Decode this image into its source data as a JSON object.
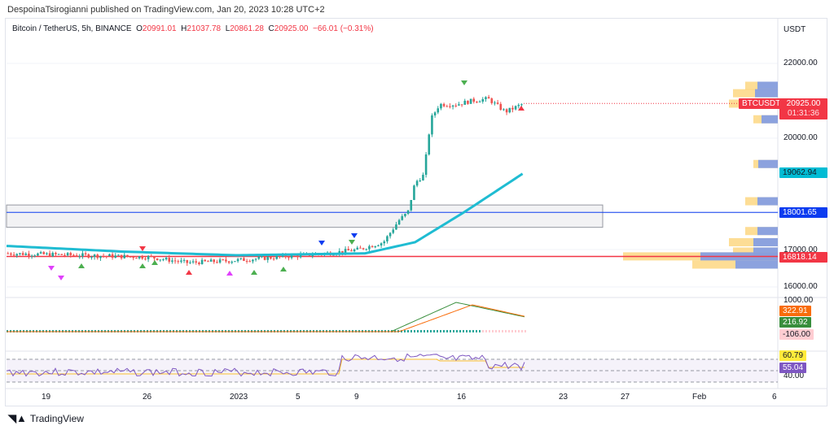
{
  "publisher_line": "DespoinaTsirogianni published on TradingView.com, Jan 20, 2023 10:28 UTC+2",
  "legend": {
    "symbol": "Bitcoin / TetherUS, 5h, BINANCE",
    "o_label": "O",
    "o": "20991.01",
    "h_label": "H",
    "h": "21037.78",
    "l_label": "L",
    "l": "20861.28",
    "c_label": "C",
    "c": "20925.00",
    "change": "−66.01 (−0.31%)"
  },
  "price_axis": {
    "currency": "USDT",
    "ticks": [
      "22000.00",
      "20000.00",
      "17000.00",
      "16000.00"
    ],
    "macd_tick": "1000.00",
    "rsi_tick": "40.00"
  },
  "labels": {
    "symbol_tag": "BTCUSDT",
    "last_price": "20925.00",
    "countdown": "01:31:36",
    "ma": "19062.94",
    "blue_line": "18001.65",
    "red_line": "16818.14",
    "macd": "322.91",
    "signal": "216.92",
    "hist": "-106.00",
    "rsi_ma": "60.79",
    "rsi": "55.04"
  },
  "time_axis": [
    "19",
    "26",
    "2023",
    "5",
    "9",
    "16",
    "23",
    "27",
    "Feb",
    "6"
  ],
  "footer": {
    "brand": "TradingView"
  },
  "colors": {
    "up": "#26a69a",
    "down": "#ef5350",
    "ma": "#1fbcd2",
    "blue": "#0c3cf0",
    "red": "#f23645"
  },
  "chart_data": {
    "type": "candlestick",
    "price_anchors_days": [
      [
        0,
        16900
      ],
      [
        5,
        16850
      ],
      [
        10,
        16800
      ],
      [
        12.6,
        16650
      ],
      [
        15.5,
        16700
      ],
      [
        18.9,
        16800
      ],
      [
        22.3,
        16900
      ],
      [
        24.5,
        17000
      ],
      [
        26.3,
        17200
      ],
      [
        27.4,
        17800
      ],
      [
        28,
        18000
      ],
      [
        28.5,
        18800
      ],
      [
        29.1,
        19000
      ],
      [
        29.6,
        20500
      ],
      [
        30.2,
        20900
      ],
      [
        31.4,
        20900
      ],
      [
        32.5,
        21000
      ],
      [
        33.6,
        21050
      ],
      [
        34.8,
        20700
      ],
      [
        36.1,
        20925
      ]
    ],
    "ma_anchors_days": [
      [
        0,
        17100
      ],
      [
        8,
        16950
      ],
      [
        16,
        16850
      ],
      [
        25,
        16900
      ],
      [
        28.5,
        17200
      ],
      [
        31.9,
        18000
      ],
      [
        36.1,
        19062.94
      ]
    ],
    "levels": {
      "blue": 18001.65,
      "red": 16818.14,
      "zone": [
        17600,
        18200
      ]
    }
  }
}
